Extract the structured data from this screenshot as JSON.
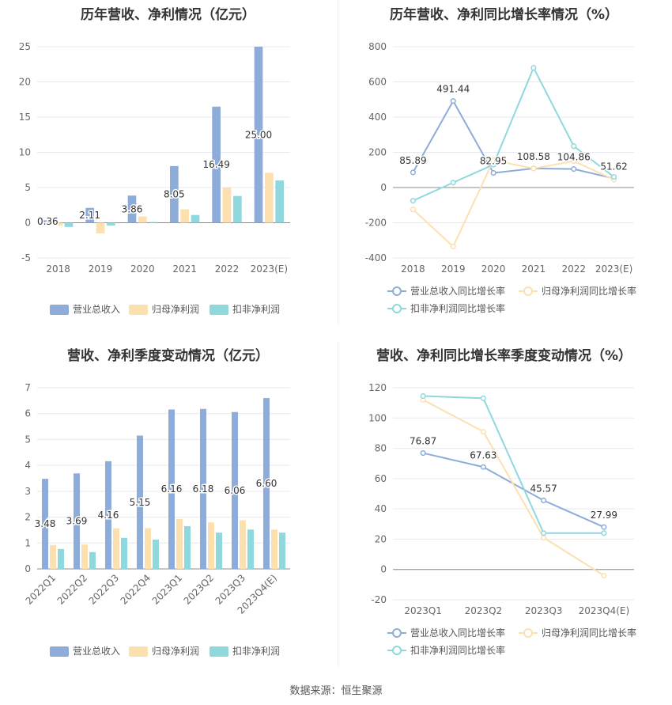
{
  "source": "数据来源：恒生聚源",
  "chart_data": [
    {
      "id": "annual_bar",
      "type": "bar",
      "title": "历年营收、净利情况（亿元）",
      "categories": [
        "2018",
        "2019",
        "2020",
        "2021",
        "2022",
        "2023(E)"
      ],
      "ylim": [
        -5,
        25
      ],
      "yticks": [
        -5,
        0,
        5,
        10,
        15,
        20,
        25
      ],
      "series": [
        {
          "name": "营业总收入",
          "color": "#8eacda",
          "values": [
            0.36,
            2.11,
            3.86,
            8.05,
            16.49,
            25.0
          ],
          "labels": [
            "0.36",
            "2.11",
            "3.86",
            "8.05",
            "16.49",
            "25.00"
          ]
        },
        {
          "name": "归母净利润",
          "color": "#fde0b0",
          "values": [
            -0.4,
            -1.5,
            0.9,
            1.9,
            5.0,
            7.1
          ]
        },
        {
          "name": "扣非净利润",
          "color": "#8fd8de",
          "values": [
            -0.6,
            -0.4,
            0.1,
            1.1,
            3.8,
            6.0
          ]
        }
      ],
      "legend_position": "bottom"
    },
    {
      "id": "annual_line",
      "type": "line",
      "title": "历年营收、净利同比增长率情况（%）",
      "categories": [
        "2018",
        "2019",
        "2020",
        "2021",
        "2022",
        "2023(E)"
      ],
      "ylim": [
        -400,
        800
      ],
      "yticks": [
        -400,
        -200,
        0,
        200,
        400,
        600,
        800
      ],
      "series": [
        {
          "name": "营业总收入同比增长率",
          "color": "#8eacda",
          "values": [
            85.89,
            491.44,
            82.95,
            108.58,
            104.86,
            51.62
          ],
          "labels": [
            "85.89",
            "491.44",
            "82.95",
            "108.58",
            "104.86",
            "51.62"
          ]
        },
        {
          "name": "归母净利润同比增长率",
          "color": "#fde0b0",
          "values": [
            -125,
            -335,
            155,
            108,
            150,
            45
          ]
        },
        {
          "name": "扣非净利润同比增长率",
          "color": "#8fd8de",
          "values": [
            -75,
            28,
            130,
            680,
            235,
            60
          ]
        }
      ],
      "legend_position": "bottom"
    },
    {
      "id": "quarter_bar",
      "type": "bar",
      "title": "营收、净利季度变动情况（亿元）",
      "categories": [
        "2022Q1",
        "2022Q2",
        "2022Q3",
        "2022Q4",
        "2023Q1",
        "2023Q2",
        "2023Q3",
        "2023Q4(E)"
      ],
      "ylim": [
        0,
        7
      ],
      "yticks": [
        0,
        1,
        2,
        3,
        4,
        5,
        6,
        7
      ],
      "series": [
        {
          "name": "营业总收入",
          "color": "#8eacda",
          "values": [
            3.48,
            3.69,
            4.16,
            5.15,
            6.16,
            6.18,
            6.06,
            6.6
          ],
          "labels": [
            "3.48",
            "3.69",
            "4.16",
            "5.15",
            "6.16",
            "6.18",
            "6.06",
            "6.60"
          ]
        },
        {
          "name": "归母净利润",
          "color": "#fde0b0",
          "values": [
            0.92,
            0.94,
            1.57,
            1.58,
            1.93,
            1.8,
            1.88,
            1.52
          ]
        },
        {
          "name": "扣非净利润",
          "color": "#8fd8de",
          "values": [
            0.77,
            0.65,
            1.2,
            1.13,
            1.65,
            1.4,
            1.52,
            1.4
          ]
        }
      ],
      "legend_position": "bottom"
    },
    {
      "id": "quarter_line",
      "type": "line",
      "title": "营收、净利同比增长率季度变动情况（%）",
      "categories": [
        "2023Q1",
        "2023Q2",
        "2023Q3",
        "2023Q4(E)"
      ],
      "ylim": [
        -20,
        120
      ],
      "yticks": [
        -20,
        0,
        20,
        40,
        60,
        80,
        100,
        120
      ],
      "series": [
        {
          "name": "营业总收入同比增长率",
          "color": "#8eacda",
          "values": [
            76.87,
            67.63,
            45.57,
            27.99
          ],
          "labels": [
            "76.87",
            "67.63",
            "45.57",
            "27.99"
          ]
        },
        {
          "name": "归母净利润同比增长率",
          "color": "#fde0b0",
          "values": [
            112,
            91,
            21,
            -4
          ]
        },
        {
          "name": "扣非净利润同比增长率",
          "color": "#8fd8de",
          "values": [
            114.5,
            113,
            24,
            24
          ]
        }
      ],
      "legend_position": "bottom"
    }
  ]
}
